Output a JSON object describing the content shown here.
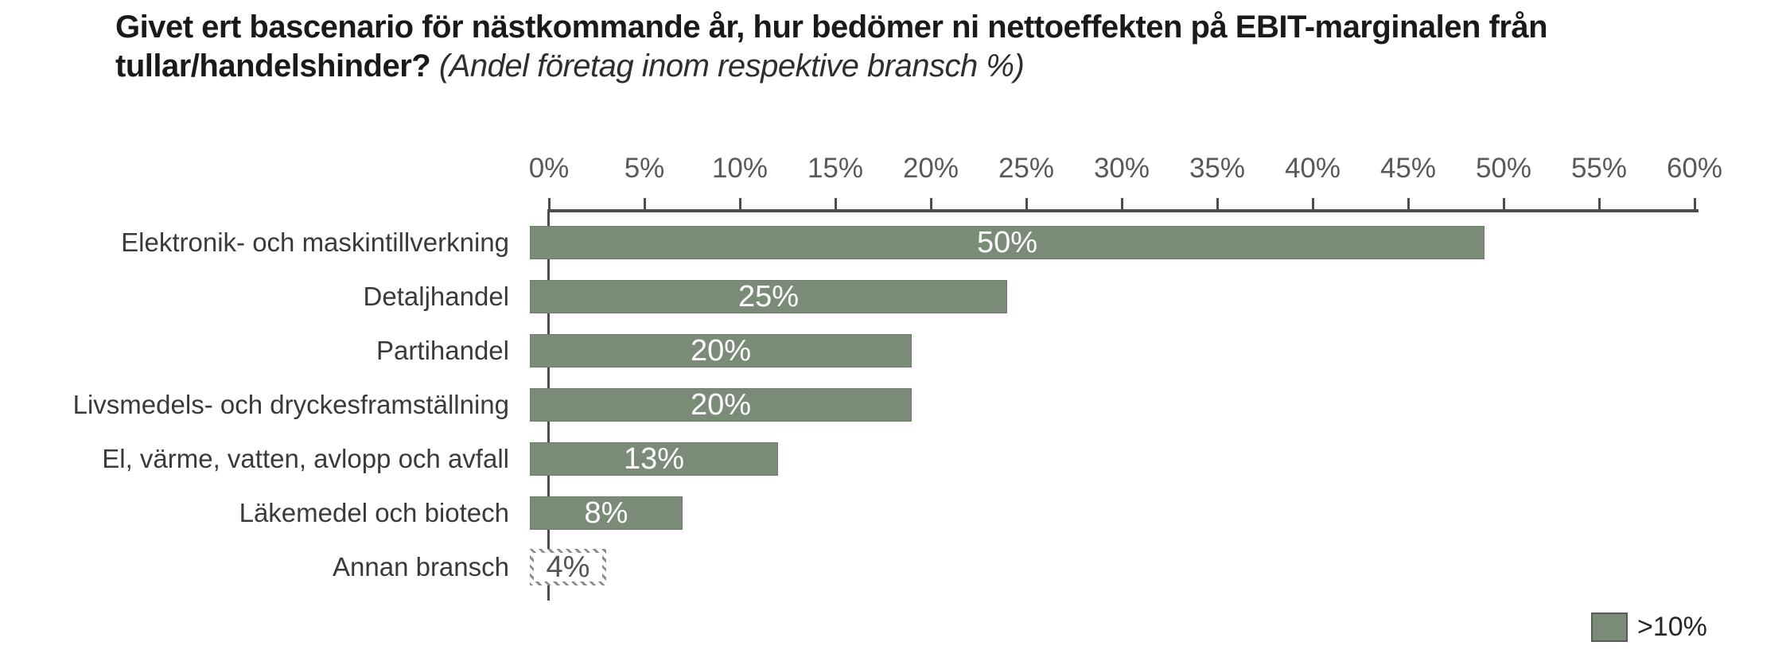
{
  "title": {
    "line1": "Givet ert bascenario för nästkommande år, hur bedömer ni nettoeffekten på EBIT-marginalen från",
    "line2_bold": "tullar/handelshinder?",
    "line2_italic": "(Andel företag inom respektive bransch %)"
  },
  "legend": {
    "label": ">10%"
  },
  "colors": {
    "bar": "#7A8C78",
    "bar_border": "#6E7C6C",
    "axis": "#4D4D4D",
    "tick_label": "#595959"
  },
  "chart_data": {
    "type": "bar",
    "orientation": "horizontal",
    "title": "Givet ert bascenario för nästkommande år, hur bedömer ni nettoeffekten på EBIT-marginalen från tullar/handelshinder?",
    "subtitle": "(Andel företag inom respektive bransch %)",
    "categories": [
      "Elektronik- och maskintillverkning",
      "Detaljhandel",
      "Partihandel",
      "Livsmedels- och dryckesframställning",
      "El, värme, vatten, avlopp och avfall",
      "Läkemedel och biotech",
      "Annan bransch"
    ],
    "values": [
      50,
      25,
      20,
      20,
      13,
      8,
      4
    ],
    "value_labels": [
      "50%",
      "25%",
      "20%",
      "20%",
      "13%",
      "8%",
      "4%"
    ],
    "bar_styles": [
      "solid",
      "solid",
      "solid",
      "solid",
      "solid",
      "solid",
      "hatched"
    ],
    "xlim": [
      0,
      60
    ],
    "x_ticks": [
      "0%",
      "5%",
      "10%",
      "15%",
      "20%",
      "25%",
      "30%",
      "35%",
      "40%",
      "45%",
      "50%",
      "55%",
      "60%"
    ],
    "grid": false,
    "legend_entries": [
      ">10%"
    ],
    "legend_position": "bottom-right"
  }
}
